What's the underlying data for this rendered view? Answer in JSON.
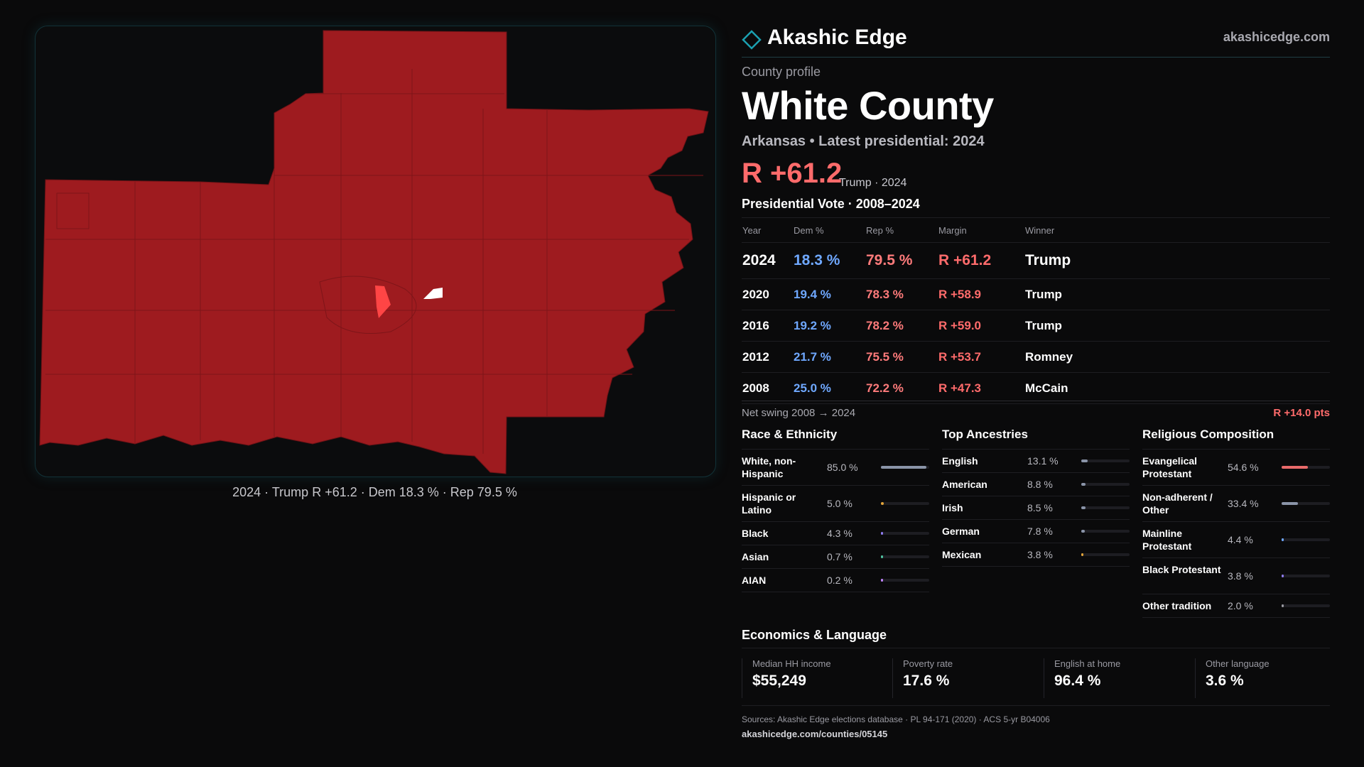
{
  "brand": {
    "name": "Akashic Edge",
    "url": "akashicedge.com",
    "accent": "#1ba0b0"
  },
  "profile": {
    "eyebrow": "County profile",
    "title": "White County",
    "subtitle": "Arkansas • Latest presidential: 2024",
    "margin": "R +61.2",
    "margin_note": "Trump · 2024"
  },
  "map": {
    "caption": "2024 · Trump R +61.2 · Dem 18.3 % · Rep 79.5 %",
    "fill_color": "#9e1b1f",
    "highlight_color": "#ff4545"
  },
  "vote": {
    "title": "Presidential Vote · 2008–2024",
    "headers": [
      "Year",
      "Dem %",
      "Rep %",
      "Margin",
      "Winner"
    ],
    "rows": [
      [
        "2024",
        "18.3 %",
        "79.5 %",
        "R +61.2",
        "Trump"
      ],
      [
        "2020",
        "19.4 %",
        "78.3 %",
        "R +58.9",
        "Trump"
      ],
      [
        "2016",
        "19.2 %",
        "78.2 %",
        "R +59.0",
        "Trump"
      ],
      [
        "2012",
        "21.7 %",
        "75.5 %",
        "R +53.7",
        "Romney"
      ],
      [
        "2008",
        "25.0 %",
        "72.2 %",
        "R +47.3",
        "McCain"
      ]
    ],
    "swing_label": "Net swing 2008 → 2024",
    "swing_value": "R +14.0 pts"
  },
  "race": {
    "title": "Race & Ethnicity",
    "items": [
      {
        "label": "White, non-Hispanic",
        "pct": "85.0 %",
        "value": 85.0,
        "color": "#8a94a8"
      },
      {
        "label": "Hispanic or Latino",
        "pct": "5.0 %",
        "value": 5.0,
        "color": "#e3a53a"
      },
      {
        "label": "Black",
        "pct": "4.3 %",
        "value": 4.3,
        "color": "#8f7cf0"
      },
      {
        "label": "Asian",
        "pct": "0.7 %",
        "value": 0.7,
        "color": "#4fc3a1"
      },
      {
        "label": "AIAN",
        "pct": "0.2 %",
        "value": 0.2,
        "color": "#c084fc"
      }
    ]
  },
  "ancestry": {
    "title": "Top Ancestries",
    "items": [
      {
        "label": "English",
        "pct": "13.1 %",
        "value": 13.1,
        "color": "#8a94a8"
      },
      {
        "label": "American",
        "pct": "8.8 %",
        "value": 8.8,
        "color": "#8a94a8"
      },
      {
        "label": "Irish",
        "pct": "8.5 %",
        "value": 8.5,
        "color": "#8a94a8"
      },
      {
        "label": "German",
        "pct": "7.8 %",
        "value": 7.8,
        "color": "#8a94a8"
      },
      {
        "label": "Mexican",
        "pct": "3.8 %",
        "value": 3.8,
        "color": "#e3a53a"
      }
    ]
  },
  "religion": {
    "title": "Religious Composition",
    "items": [
      {
        "label": "Evangelical Protestant",
        "pct": "54.6 %",
        "value": 54.6,
        "color": "#e86a6a"
      },
      {
        "label": "Non-adherent / Other",
        "pct": "33.4 %",
        "value": 33.4,
        "color": "#8a94a8"
      },
      {
        "label": "Mainline Protestant",
        "pct": "4.4 %",
        "value": 4.4,
        "color": "#6fa8ff"
      },
      {
        "label": "Black Protestant",
        "pct": "3.8 %",
        "value": 3.8,
        "color": "#8f7cf0"
      },
      {
        "label": "Other tradition",
        "pct": "2.0 %",
        "value": 2.0,
        "color": "#9a9aa2"
      }
    ]
  },
  "economics": {
    "title": "Economics & Language",
    "cards": [
      {
        "label": "Median HH income",
        "value": "$55,249"
      },
      {
        "label": "Poverty rate",
        "value": "17.6 %"
      },
      {
        "label": "English at home",
        "value": "96.4 %"
      },
      {
        "label": "Other language",
        "value": "3.6 %"
      }
    ]
  },
  "sources": {
    "text": "Sources: Akashic Edge elections database · PL 94-171 (2020) · ACS 5-yr B04006",
    "url": "akashicedge.com/counties/05145"
  }
}
